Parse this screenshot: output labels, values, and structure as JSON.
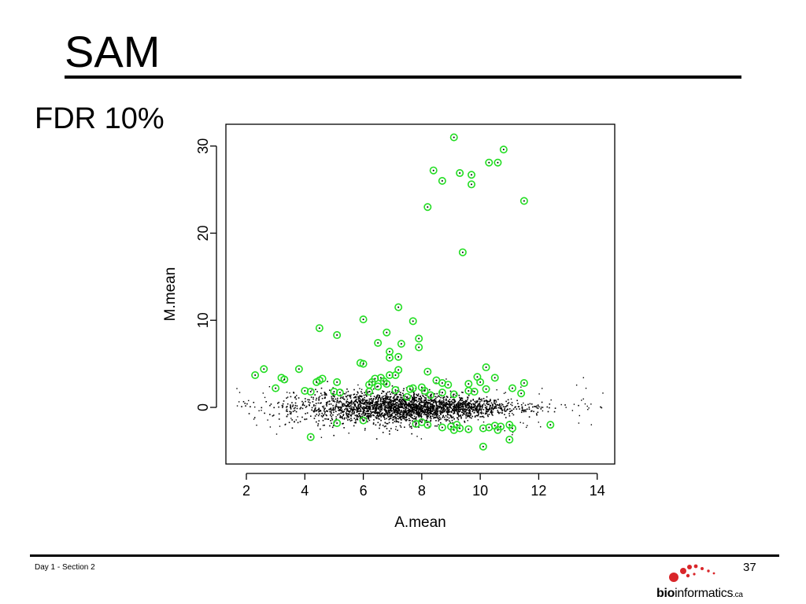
{
  "slide": {
    "title": "SAM",
    "subtitle": "FDR 10%",
    "footer_left": "Day 1 - Section 2",
    "page_number": "37",
    "logo": {
      "bold": "bio",
      "regular": "informatics",
      "suffix": ".ca",
      "dot_color": "#d9262a"
    }
  },
  "chart_data": {
    "type": "scatter",
    "title": "",
    "xlabel": "A.mean",
    "ylabel": "M.mean",
    "xlim": [
      1.3,
      14.6
    ],
    "ylim": [
      -6.5,
      32.5
    ],
    "xticks": [
      2,
      4,
      6,
      8,
      10,
      12,
      14
    ],
    "yticks": [
      0,
      10,
      20,
      30
    ],
    "grid": false,
    "colors": {
      "background_points": "#000000",
      "significant": "#22dd22"
    },
    "significant_points": [
      [
        9.1,
        31.0
      ],
      [
        10.8,
        29.6
      ],
      [
        8.4,
        27.2
      ],
      [
        10.3,
        28.1
      ],
      [
        10.6,
        28.1
      ],
      [
        9.3,
        26.9
      ],
      [
        9.7,
        26.7
      ],
      [
        8.7,
        26.0
      ],
      [
        9.7,
        25.6
      ],
      [
        11.5,
        23.7
      ],
      [
        8.2,
        23.0
      ],
      [
        9.4,
        17.8
      ],
      [
        7.2,
        11.5
      ],
      [
        6.0,
        10.1
      ],
      [
        7.7,
        9.9
      ],
      [
        4.5,
        9.1
      ],
      [
        6.8,
        8.6
      ],
      [
        5.1,
        8.3
      ],
      [
        7.9,
        7.9
      ],
      [
        6.5,
        7.4
      ],
      [
        7.3,
        7.3
      ],
      [
        7.9,
        6.9
      ],
      [
        6.9,
        6.4
      ],
      [
        7.2,
        5.8
      ],
      [
        6.9,
        5.7
      ],
      [
        5.9,
        5.1
      ],
      [
        6.0,
        5.0
      ],
      [
        10.2,
        4.6
      ],
      [
        2.6,
        4.4
      ],
      [
        3.8,
        4.4
      ],
      [
        7.2,
        4.3
      ],
      [
        8.2,
        4.1
      ],
      [
        7.1,
        3.7
      ],
      [
        2.3,
        3.7
      ],
      [
        6.9,
        3.7
      ],
      [
        9.9,
        3.5
      ],
      [
        10.5,
        3.4
      ],
      [
        3.2,
        3.4
      ],
      [
        6.6,
        3.4
      ],
      [
        4.6,
        3.3
      ],
      [
        6.4,
        3.3
      ],
      [
        3.3,
        3.2
      ],
      [
        4.5,
        3.1
      ],
      [
        8.5,
        3.1
      ],
      [
        6.7,
        3.0
      ],
      [
        4.4,
        2.9
      ],
      [
        5.1,
        2.9
      ],
      [
        6.3,
        2.9
      ],
      [
        8.7,
        2.8
      ],
      [
        10.0,
        2.9
      ],
      [
        11.5,
        2.8
      ],
      [
        9.6,
        2.7
      ],
      [
        6.8,
        2.7
      ],
      [
        8.9,
        2.6
      ],
      [
        6.2,
        2.6
      ],
      [
        6.5,
        2.4
      ],
      [
        8.0,
        2.3
      ],
      [
        7.7,
        2.2
      ],
      [
        7.6,
        2.1
      ],
      [
        3.0,
        2.2
      ],
      [
        11.1,
        2.2
      ],
      [
        10.2,
        2.1
      ],
      [
        7.1,
        2.0
      ],
      [
        8.1,
        1.9
      ],
      [
        9.6,
        1.9
      ],
      [
        9.8,
        1.8
      ],
      [
        4.0,
        1.9
      ],
      [
        4.2,
        1.8
      ],
      [
        8.7,
        1.7
      ],
      [
        5.0,
        1.8
      ],
      [
        11.4,
        1.6
      ],
      [
        5.2,
        1.7
      ],
      [
        8.3,
        1.4
      ],
      [
        7.5,
        1.2
      ],
      [
        9.1,
        1.5
      ],
      [
        6.2,
        1.8
      ],
      [
        5.1,
        -1.8
      ],
      [
        7.8,
        -1.9
      ],
      [
        8.2,
        -2.0
      ],
      [
        12.4,
        -2.0
      ],
      [
        9.2,
        -2.0
      ],
      [
        10.5,
        -2.1
      ],
      [
        9.0,
        -2.2
      ],
      [
        10.7,
        -2.2
      ],
      [
        10.3,
        -2.3
      ],
      [
        8.7,
        -2.3
      ],
      [
        9.6,
        -2.5
      ],
      [
        10.1,
        -2.4
      ],
      [
        11.1,
        -2.4
      ],
      [
        10.6,
        -2.6
      ],
      [
        9.3,
        -2.4
      ],
      [
        9.1,
        -2.6
      ],
      [
        4.2,
        -3.4
      ],
      [
        11.0,
        -3.7
      ],
      [
        10.1,
        -4.5
      ],
      [
        11.0,
        -2.0
      ],
      [
        8.0,
        -1.7
      ],
      [
        6.0,
        -1.5
      ]
    ]
  }
}
